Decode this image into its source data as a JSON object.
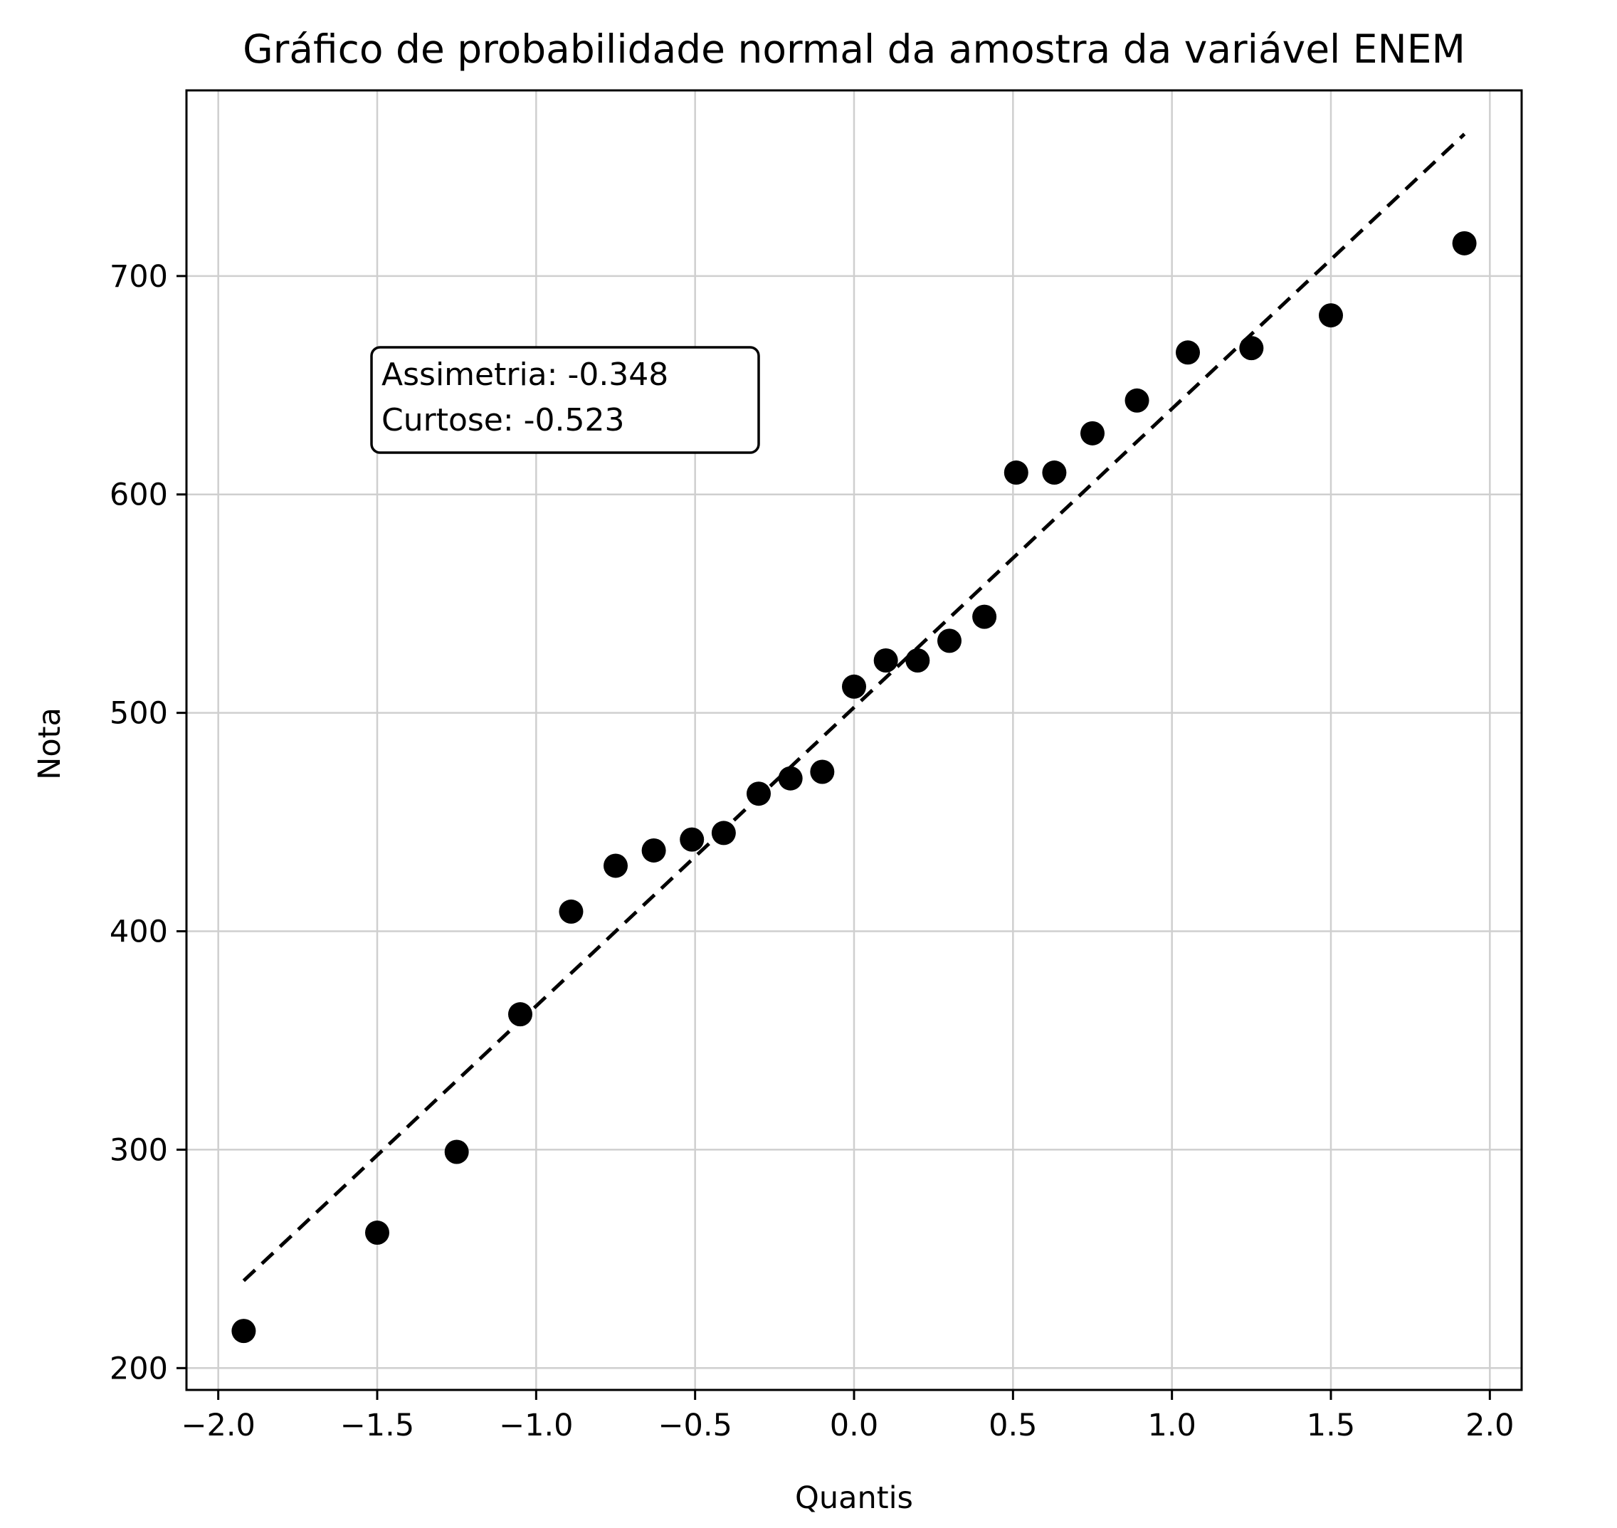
{
  "chart_data": {
    "type": "scatter",
    "title": "Gráfico de probabilidade normal da amostra da variável ENEM",
    "xlabel": "Quantis",
    "ylabel": "Nota",
    "xlim": [
      -2.1,
      2.1
    ],
    "ylim": [
      190,
      785
    ],
    "xticks": [
      -2.0,
      -1.5,
      -1.0,
      -0.5,
      0.0,
      0.5,
      1.0,
      1.5,
      2.0
    ],
    "xtick_labels": [
      "−2.0",
      "−1.5",
      "−1.0",
      "−0.5",
      "0.0",
      "0.5",
      "1.0",
      "1.5",
      "2.0"
    ],
    "yticks": [
      200,
      300,
      400,
      500,
      600,
      700
    ],
    "ytick_labels": [
      "200",
      "300",
      "400",
      "500",
      "600",
      "700"
    ],
    "grid": true,
    "points": {
      "x": [
        -1.92,
        -1.5,
        -1.25,
        -1.05,
        -0.89,
        -0.75,
        -0.63,
        -0.51,
        -0.41,
        -0.3,
        -0.2,
        -0.1,
        0.0,
        0.1,
        0.2,
        0.3,
        0.41,
        0.51,
        0.63,
        0.75,
        0.89,
        1.05,
        1.25,
        1.5,
        1.92
      ],
      "y": [
        217,
        262,
        299,
        362,
        409,
        430,
        437,
        442,
        445,
        463,
        470,
        473,
        512,
        524,
        524,
        533,
        544,
        610,
        610,
        628,
        643,
        665,
        667,
        682,
        715
      ],
      "color": "#000000"
    },
    "reference_line": {
      "x": [
        -1.92,
        1.92
      ],
      "y": [
        240,
        765
      ],
      "style": "dashed",
      "color": "#000000"
    },
    "annotation": {
      "lines": [
        "Assimetria: -0.348",
        "Curtose: -0.523"
      ]
    }
  }
}
